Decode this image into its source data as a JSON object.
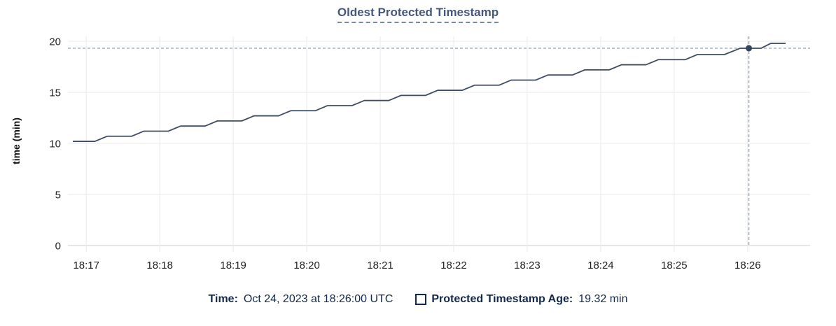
{
  "title": {
    "label": "Oldest Protected Timestamp"
  },
  "tooltip": {
    "time_label": "Time:",
    "time_value": "Oct 24, 2023 at 18:26:00 UTC",
    "series_label": "Protected Timestamp Age:",
    "series_value": "19.32 min"
  },
  "colors": {
    "background": "#ffffff",
    "title_text": "#46587a",
    "title_underline": "#7589a8",
    "legend_text": "#13294b",
    "tick_text": "#1f1f1f",
    "grid": "#ededed",
    "axis_line": "#dedede",
    "series_line": "#3e4c63",
    "marker_dot": "#33435c",
    "crosshair": "#94a9b7"
  },
  "chart_data": {
    "type": "line",
    "title": "Oldest Protected Timestamp",
    "xlabel": "",
    "ylabel": "time (min)",
    "ylim": [
      0,
      20
    ],
    "grid": true,
    "legend_position": "bottom",
    "x_range_seconds": 606,
    "yticks": [
      {
        "value": 0,
        "label": "0"
      },
      {
        "value": 5,
        "label": "5"
      },
      {
        "value": 10,
        "label": "10"
      },
      {
        "value": 15,
        "label": "15"
      },
      {
        "value": 20,
        "label": "20"
      }
    ],
    "xticks": [
      {
        "t": 15,
        "label": "18:17"
      },
      {
        "t": 75,
        "label": "18:18"
      },
      {
        "t": 135,
        "label": "18:19"
      },
      {
        "t": 195,
        "label": "18:20"
      },
      {
        "t": 255,
        "label": "18:21"
      },
      {
        "t": 315,
        "label": "18:22"
      },
      {
        "t": 375,
        "label": "18:23"
      },
      {
        "t": 435,
        "label": "18:24"
      },
      {
        "t": 495,
        "label": "18:25"
      },
      {
        "t": 555,
        "label": "18:26"
      }
    ],
    "series": [
      {
        "name": "Protected Timestamp Age",
        "unit": "min",
        "points": [
          [
            4,
            10.2
          ],
          [
            22,
            10.2
          ],
          [
            32,
            10.7
          ],
          [
            52,
            10.7
          ],
          [
            62,
            11.2
          ],
          [
            82,
            11.2
          ],
          [
            92,
            11.7
          ],
          [
            112,
            11.7
          ],
          [
            122,
            12.2
          ],
          [
            142,
            12.2
          ],
          [
            152,
            12.7
          ],
          [
            172,
            12.7
          ],
          [
            182,
            13.2
          ],
          [
            202,
            13.2
          ],
          [
            212,
            13.7
          ],
          [
            232,
            13.7
          ],
          [
            242,
            14.2
          ],
          [
            262,
            14.2
          ],
          [
            272,
            14.7
          ],
          [
            292,
            14.7
          ],
          [
            302,
            15.2
          ],
          [
            322,
            15.2
          ],
          [
            332,
            15.7
          ],
          [
            352,
            15.7
          ],
          [
            362,
            16.2
          ],
          [
            382,
            16.2
          ],
          [
            392,
            16.7
          ],
          [
            412,
            16.7
          ],
          [
            422,
            17.2
          ],
          [
            442,
            17.2
          ],
          [
            452,
            17.7
          ],
          [
            472,
            17.7
          ],
          [
            482,
            18.2
          ],
          [
            504,
            18.2
          ],
          [
            514,
            18.7
          ],
          [
            536,
            18.7
          ],
          [
            549,
            19.32
          ],
          [
            566,
            19.32
          ],
          [
            574,
            19.8
          ],
          [
            586,
            19.8
          ]
        ]
      }
    ],
    "crosshair": {
      "t": 556,
      "value": 19.32
    }
  }
}
